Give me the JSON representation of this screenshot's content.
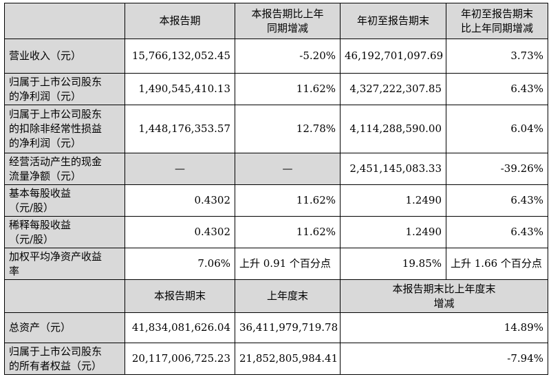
{
  "header": {
    "col1": "本报告期",
    "col2_l1": "本报告期比上年",
    "col2_l2": "同期增减",
    "col3": "年初至报告期末",
    "col4_l1": "年初至报告期末",
    "col4_l2": "比上年同期增减"
  },
  "rows": [
    {
      "l1": "营业收入（元）",
      "l2": "",
      "l3": "",
      "c1": "15,766,132,052.45",
      "c2": "-5.20%",
      "c3": "46,192,701,097.69",
      "c4": "3.73%"
    },
    {
      "l1": "归属于上市公司股东",
      "l2": "的净利润（元）",
      "l3": "",
      "c1": "1,490,545,410.13",
      "c2": "11.62%",
      "c3": "4,327,222,307.85",
      "c4": "6.43%"
    },
    {
      "l1": "归属于上市公司股东",
      "l2": "的扣除非经常性损益",
      "l3": "的净利润（元）",
      "c1": "1,448,176,353.57",
      "c2": "12.78%",
      "c3": "4,114,288,590.00",
      "c4": "6.04%"
    },
    {
      "l1": "经营活动产生的现金",
      "l2": "流量净额（元）",
      "l3": "",
      "c1": "—",
      "c2": "—",
      "c3": "2,451,145,083.33",
      "c4": "-39.26%"
    },
    {
      "l1": "基本每股收益",
      "l2": "（元/股）",
      "l3": "",
      "c1": "0.4302",
      "c2": "11.62%",
      "c3": "1.2490",
      "c4": "6.43%"
    },
    {
      "l1": "稀释每股收益",
      "l2": "（元/股）",
      "l3": "",
      "c1": "0.4302",
      "c2": "11.62%",
      "c3": "1.2490",
      "c4": "6.43%"
    },
    {
      "l1": "加权平均净资产收益",
      "l2": "率",
      "l3": "",
      "c1": "7.06%",
      "c2": "上升 0.91 个百分点",
      "c3": "19.85%",
      "c4": "上升 1.66 个百分点"
    }
  ],
  "header2": {
    "col1": "本报告期末",
    "col2": "上年度末",
    "col3_l1": "本报告期末比上年度末",
    "col3_l2": "增减"
  },
  "rows2": [
    {
      "l1": "总资产（元）",
      "l2": "",
      "c1": "41,834,081,626.04",
      "c2": "36,411,979,719.78",
      "c3": "14.89%"
    },
    {
      "l1": "归属于上市公司股东",
      "l2": "的所有者权益（元）",
      "c1": "20,117,006,725.23",
      "c2": "21,852,805,984.41",
      "c3": "-7.94%"
    }
  ]
}
